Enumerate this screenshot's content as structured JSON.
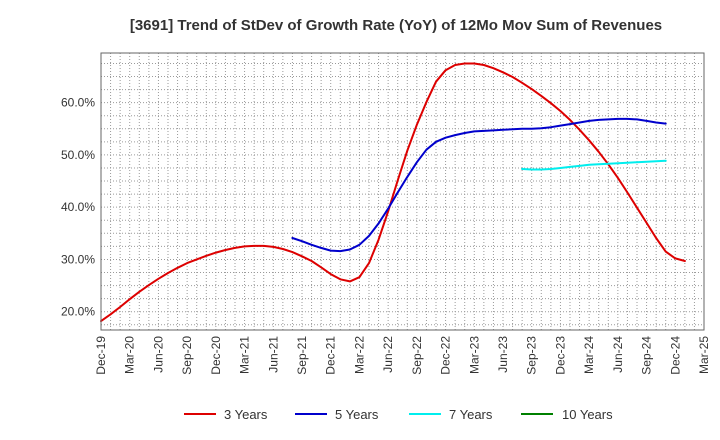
{
  "chart_data": {
    "type": "line",
    "title": "[3691]  Trend of StDev of Growth Rate (YoY) of 12Mo Mov Sum of Revenues",
    "xlabel": "",
    "ylabel": "",
    "x_tick_labels": [
      "Dec-19",
      "Mar-20",
      "Jun-20",
      "Sep-20",
      "Dec-20",
      "Mar-21",
      "Jun-21",
      "Sep-21",
      "Dec-21",
      "Mar-22",
      "Jun-22",
      "Sep-22",
      "Dec-22",
      "Mar-23",
      "Jun-23",
      "Sep-23",
      "Dec-23",
      "Mar-24",
      "Jun-24",
      "Sep-24",
      "Dec-24",
      "Mar-25"
    ],
    "y_ticks": [
      20,
      30,
      40,
      50,
      60
    ],
    "y_tick_labels": [
      "20.0%",
      "30.0%",
      "40.0%",
      "50.0%",
      "60.0%"
    ],
    "ylim": [
      16.5,
      69.5
    ],
    "x_unit": "months since Dec-19",
    "xlim": [
      0,
      63
    ],
    "grid": true,
    "legend_position": "bottom",
    "series": [
      {
        "name": "3 Years",
        "color": "#dd0000",
        "points": [
          [
            0,
            18.2
          ],
          [
            1,
            19.5
          ],
          [
            2,
            20.9
          ],
          [
            3,
            22.4
          ],
          [
            4,
            23.8
          ],
          [
            5,
            25.1
          ],
          [
            6,
            26.3
          ],
          [
            7,
            27.4
          ],
          [
            8,
            28.4
          ],
          [
            9,
            29.3
          ],
          [
            10,
            30.0
          ],
          [
            11,
            30.7
          ],
          [
            12,
            31.3
          ],
          [
            13,
            31.8
          ],
          [
            14,
            32.2
          ],
          [
            15,
            32.5
          ],
          [
            16,
            32.6
          ],
          [
            17,
            32.6
          ],
          [
            18,
            32.4
          ],
          [
            19,
            32.0
          ],
          [
            20,
            31.4
          ],
          [
            21,
            30.6
          ],
          [
            22,
            29.7
          ],
          [
            23,
            28.5
          ],
          [
            24,
            27.2
          ],
          [
            25,
            26.2
          ],
          [
            26,
            25.8
          ],
          [
            27,
            26.6
          ],
          [
            28,
            29.3
          ],
          [
            29,
            33.8
          ],
          [
            30,
            39.2
          ],
          [
            31,
            45.1
          ],
          [
            32,
            50.8
          ],
          [
            33,
            55.8
          ],
          [
            34,
            60.1
          ],
          [
            35,
            64.0
          ],
          [
            36,
            66.2
          ],
          [
            37,
            67.2
          ],
          [
            38,
            67.5
          ],
          [
            39,
            67.5
          ],
          [
            40,
            67.2
          ],
          [
            41,
            66.6
          ],
          [
            42,
            65.8
          ],
          [
            43,
            64.9
          ],
          [
            44,
            63.8
          ],
          [
            45,
            62.6
          ],
          [
            46,
            61.3
          ],
          [
            47,
            59.9
          ],
          [
            48,
            58.4
          ],
          [
            49,
            56.7
          ],
          [
            50,
            54.8
          ],
          [
            51,
            52.8
          ],
          [
            52,
            50.6
          ],
          [
            53,
            48.2
          ],
          [
            54,
            45.6
          ],
          [
            55,
            42.8
          ],
          [
            56,
            39.9
          ],
          [
            57,
            37.0
          ],
          [
            58,
            34.1
          ],
          [
            59,
            31.5
          ],
          [
            60,
            30.2
          ],
          [
            61,
            29.7
          ]
        ]
      },
      {
        "name": "5 Years",
        "color": "#0000cc",
        "points": [
          [
            20,
            34.1
          ],
          [
            21,
            33.5
          ],
          [
            22,
            32.8
          ],
          [
            23,
            32.2
          ],
          [
            24,
            31.7
          ],
          [
            25,
            31.6
          ],
          [
            26,
            31.9
          ],
          [
            27,
            32.8
          ],
          [
            28,
            34.5
          ],
          [
            29,
            36.9
          ],
          [
            30,
            39.7
          ],
          [
            31,
            42.8
          ],
          [
            32,
            45.8
          ],
          [
            33,
            48.6
          ],
          [
            34,
            51.0
          ],
          [
            35,
            52.5
          ],
          [
            36,
            53.3
          ],
          [
            37,
            53.8
          ],
          [
            38,
            54.2
          ],
          [
            39,
            54.5
          ],
          [
            40,
            54.6
          ],
          [
            41,
            54.7
          ],
          [
            42,
            54.8
          ],
          [
            43,
            54.9
          ],
          [
            44,
            55.0
          ],
          [
            45,
            55.0
          ],
          [
            46,
            55.1
          ],
          [
            47,
            55.3
          ],
          [
            48,
            55.6
          ],
          [
            49,
            55.9
          ],
          [
            50,
            56.2
          ],
          [
            51,
            56.5
          ],
          [
            52,
            56.7
          ],
          [
            53,
            56.8
          ],
          [
            54,
            56.9
          ],
          [
            55,
            56.9
          ],
          [
            56,
            56.8
          ],
          [
            57,
            56.5
          ],
          [
            58,
            56.2
          ],
          [
            59,
            56.0
          ]
        ]
      },
      {
        "name": "7 Years",
        "color": "#00eeee",
        "points": [
          [
            44,
            47.3
          ],
          [
            45,
            47.2
          ],
          [
            46,
            47.2
          ],
          [
            47,
            47.3
          ],
          [
            48,
            47.5
          ],
          [
            49,
            47.7
          ],
          [
            50,
            47.9
          ],
          [
            51,
            48.1
          ],
          [
            52,
            48.2
          ],
          [
            53,
            48.3
          ],
          [
            54,
            48.4
          ],
          [
            55,
            48.5
          ],
          [
            56,
            48.6
          ],
          [
            57,
            48.7
          ],
          [
            58,
            48.8
          ],
          [
            59,
            48.9
          ]
        ]
      },
      {
        "name": "10 Years",
        "color": "#008000",
        "points": []
      }
    ]
  }
}
